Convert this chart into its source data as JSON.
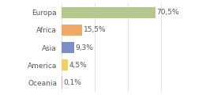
{
  "categories": [
    "Europa",
    "Africa",
    "Asia",
    "America",
    "Oceania"
  ],
  "values": [
    70.5,
    15.5,
    9.3,
    4.5,
    0.1
  ],
  "labels": [
    "70,5%",
    "15,5%",
    "9,3%",
    "4,5%",
    "0,1%"
  ],
  "bar_colors": [
    "#b5c98e",
    "#f0a868",
    "#7b8ec8",
    "#f0d060",
    "#f0d060"
  ],
  "bar_colors_override": [
    "#b5c98e",
    "#f0a868",
    "#7b8ec8",
    "#f0d878",
    "#f5b8b0"
  ],
  "background_color": "#ffffff",
  "grid_color": "#dddddd",
  "text_color": "#555555",
  "xlim": [
    0,
    100
  ],
  "bar_height": 0.62,
  "label_fontsize": 6.5,
  "ytick_fontsize": 6.5,
  "grid_values": [
    0,
    25,
    50,
    75,
    100
  ]
}
